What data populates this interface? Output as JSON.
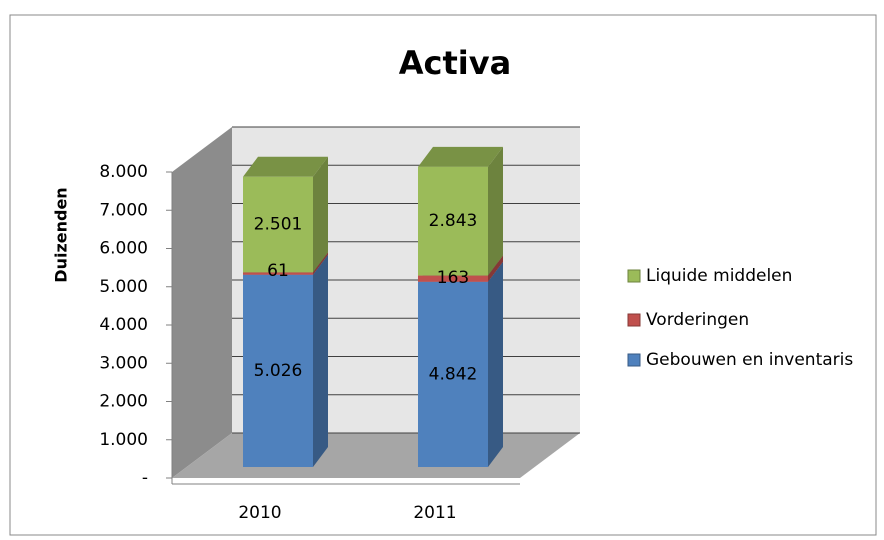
{
  "chart_data": {
    "type": "bar3d_stacked",
    "title": "Activa",
    "y_label": "Duizenden",
    "categories": [
      "2010",
      "2011"
    ],
    "series": [
      {
        "name": "Gebouwen en inventaris",
        "color": "#4f81bd",
        "values": [
          5026,
          4842
        ],
        "value_labels": [
          "5.026",
          "4.842"
        ]
      },
      {
        "name": "Vorderingen",
        "color": "#c0504d",
        "values": [
          61,
          163
        ],
        "value_labels": [
          "61",
          "163"
        ]
      },
      {
        "name": "Liquide middelen",
        "color": "#9bbb59",
        "values": [
          2501,
          2843
        ],
        "value_labels": [
          "2.501",
          "2.843"
        ]
      }
    ],
    "ylim": [
      0,
      8000
    ],
    "yticks": [
      {
        "value": 0,
        "label": "-"
      },
      {
        "value": 1000,
        "label": "1.000"
      },
      {
        "value": 2000,
        "label": "2.000"
      },
      {
        "value": 3000,
        "label": "3.000"
      },
      {
        "value": 4000,
        "label": "4.000"
      },
      {
        "value": 5000,
        "label": "5.000"
      },
      {
        "value": 6000,
        "label": "6.000"
      },
      {
        "value": 7000,
        "label": "7.000"
      },
      {
        "value": 8000,
        "label": "8.000"
      }
    ],
    "grid": true,
    "legend": "right"
  }
}
